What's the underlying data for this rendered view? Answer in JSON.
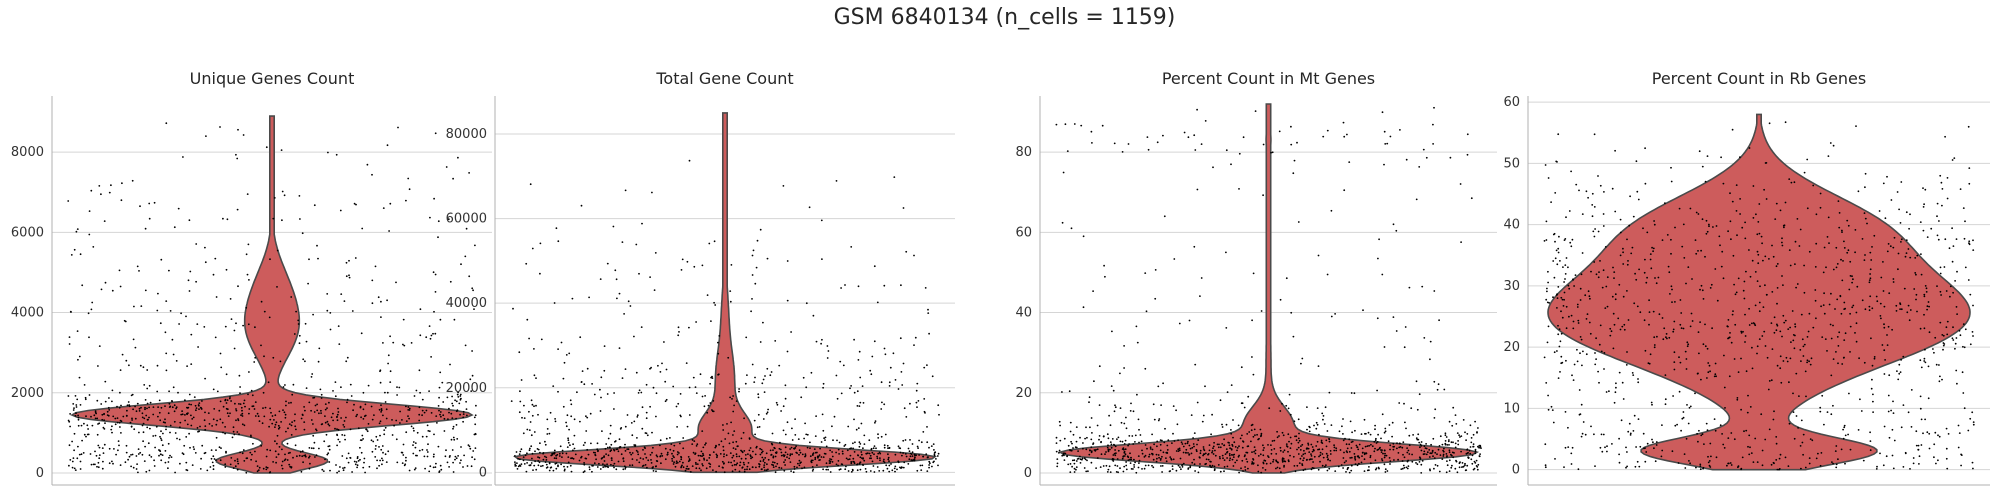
{
  "figure": {
    "title": "GSM 6840134 (n_cells = 1159)"
  },
  "chart_data": [
    {
      "type": "violin",
      "title": "Unique Genes Count",
      "xlabel": "",
      "ylabel": "",
      "yticks": [
        0,
        2000,
        4000,
        6000,
        8000
      ],
      "ylim": [
        -300,
        9400
      ],
      "grid": "horizontal",
      "violin_color": "#cd5c5c",
      "points_color": "#000000",
      "n_points": 1159,
      "range": [
        0,
        8900
      ],
      "modes": [
        {
          "center": 1450,
          "sd": 260,
          "weight": 1.0
        },
        {
          "center": 300,
          "sd": 200,
          "weight": 0.28
        },
        {
          "center": 3500,
          "sd": 700,
          "weight": 0.11
        },
        {
          "center": 4600,
          "sd": 700,
          "weight": 0.07
        }
      ],
      "stripplot": [
        {
          "center": 1450,
          "sd": 350,
          "weight": 0.44
        },
        {
          "center": 400,
          "sd": 250,
          "weight": 0.28
        },
        {
          "center": 3500,
          "sd": 1400,
          "weight": 0.22
        },
        {
          "center": 7000,
          "sd": 900,
          "weight": 0.06
        }
      ]
    },
    {
      "type": "violin",
      "title": "Total Gene Count",
      "xlabel": "",
      "ylabel": "",
      "yticks": [
        0,
        20000,
        40000,
        60000,
        80000
      ],
      "ylim": [
        -3000,
        89000
      ],
      "grid": "horizontal",
      "violin_color": "#cd5c5c",
      "points_color": "#000000",
      "n_points": 1159,
      "range": [
        0,
        85000
      ],
      "modes": [
        {
          "center": 3500,
          "sd": 1800,
          "weight": 1.0
        },
        {
          "center": 10000,
          "sd": 4000,
          "weight": 0.12
        },
        {
          "center": 22000,
          "sd": 7000,
          "weight": 0.045
        },
        {
          "center": 38000,
          "sd": 7000,
          "weight": 0.015
        }
      ],
      "stripplot": [
        {
          "center": 3500,
          "sd": 2200,
          "weight": 0.62
        },
        {
          "center": 15000,
          "sd": 9000,
          "weight": 0.28
        },
        {
          "center": 40000,
          "sd": 15000,
          "weight": 0.1
        }
      ]
    },
    {
      "type": "violin",
      "title": "Percent Count in Mt Genes",
      "xlabel": "",
      "ylabel": "",
      "yticks": [
        0,
        20,
        40,
        60,
        80
      ],
      "ylim": [
        -3,
        94
      ],
      "grid": "horizontal",
      "violin_color": "#cd5c5c",
      "points_color": "#000000",
      "n_points": 1159,
      "range": [
        0,
        92
      ],
      "modes": [
        {
          "center": 5,
          "sd": 2.2,
          "weight": 1.0
        },
        {
          "center": 12,
          "sd": 4.5,
          "weight": 0.12
        },
        {
          "center": 28,
          "sd": 10,
          "weight": 0.012
        },
        {
          "center": 83,
          "sd": 3,
          "weight": 0.012
        }
      ],
      "stripplot": [
        {
          "center": 5,
          "sd": 3,
          "weight": 0.72
        },
        {
          "center": 12,
          "sd": 6,
          "weight": 0.14
        },
        {
          "center": 45,
          "sd": 20,
          "weight": 0.08
        },
        {
          "center": 82,
          "sd": 5,
          "weight": 0.06
        }
      ]
    },
    {
      "type": "violin",
      "title": "Percent Count in Rb Genes",
      "xlabel": "",
      "ylabel": "",
      "yticks": [
        0,
        10,
        20,
        30,
        40,
        50,
        60
      ],
      "ylim": [
        -2.5,
        61
      ],
      "grid": "horizontal",
      "violin_color": "#cd5c5c",
      "points_color": "#000000",
      "n_points": 1159,
      "range": [
        0,
        58
      ],
      "modes": [
        {
          "center": 3,
          "sd": 2.2,
          "weight": 0.55
        },
        {
          "center": 25,
          "sd": 8,
          "weight": 1.0
        },
        {
          "center": 40,
          "sd": 6,
          "weight": 0.45
        }
      ],
      "stripplot": [
        {
          "center": 3,
          "sd": 3,
          "weight": 0.18
        },
        {
          "center": 24,
          "sd": 9,
          "weight": 0.6
        },
        {
          "center": 40,
          "sd": 7,
          "weight": 0.22
        }
      ]
    }
  ]
}
